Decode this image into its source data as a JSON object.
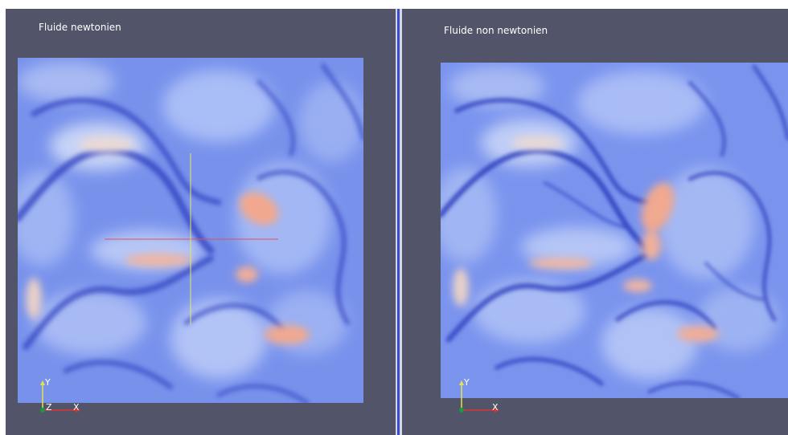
{
  "views": {
    "left": {
      "title": "Fluide newtonien",
      "axes": {
        "x": "X",
        "y": "Y",
        "z": "Z"
      }
    },
    "right": {
      "title": "Fluide non newtonien",
      "axes": {
        "x": "X",
        "y": "Y",
        "z": "Z"
      }
    }
  },
  "colors": {
    "background": "#525569",
    "field_low": "#2f3fc0",
    "field_mid": "#7d98f0",
    "field_high": "#f4a484",
    "splitter_active": "#3a4ad8",
    "probe_horizontal": "#e0505a",
    "probe_vertical": "#e8e860"
  }
}
